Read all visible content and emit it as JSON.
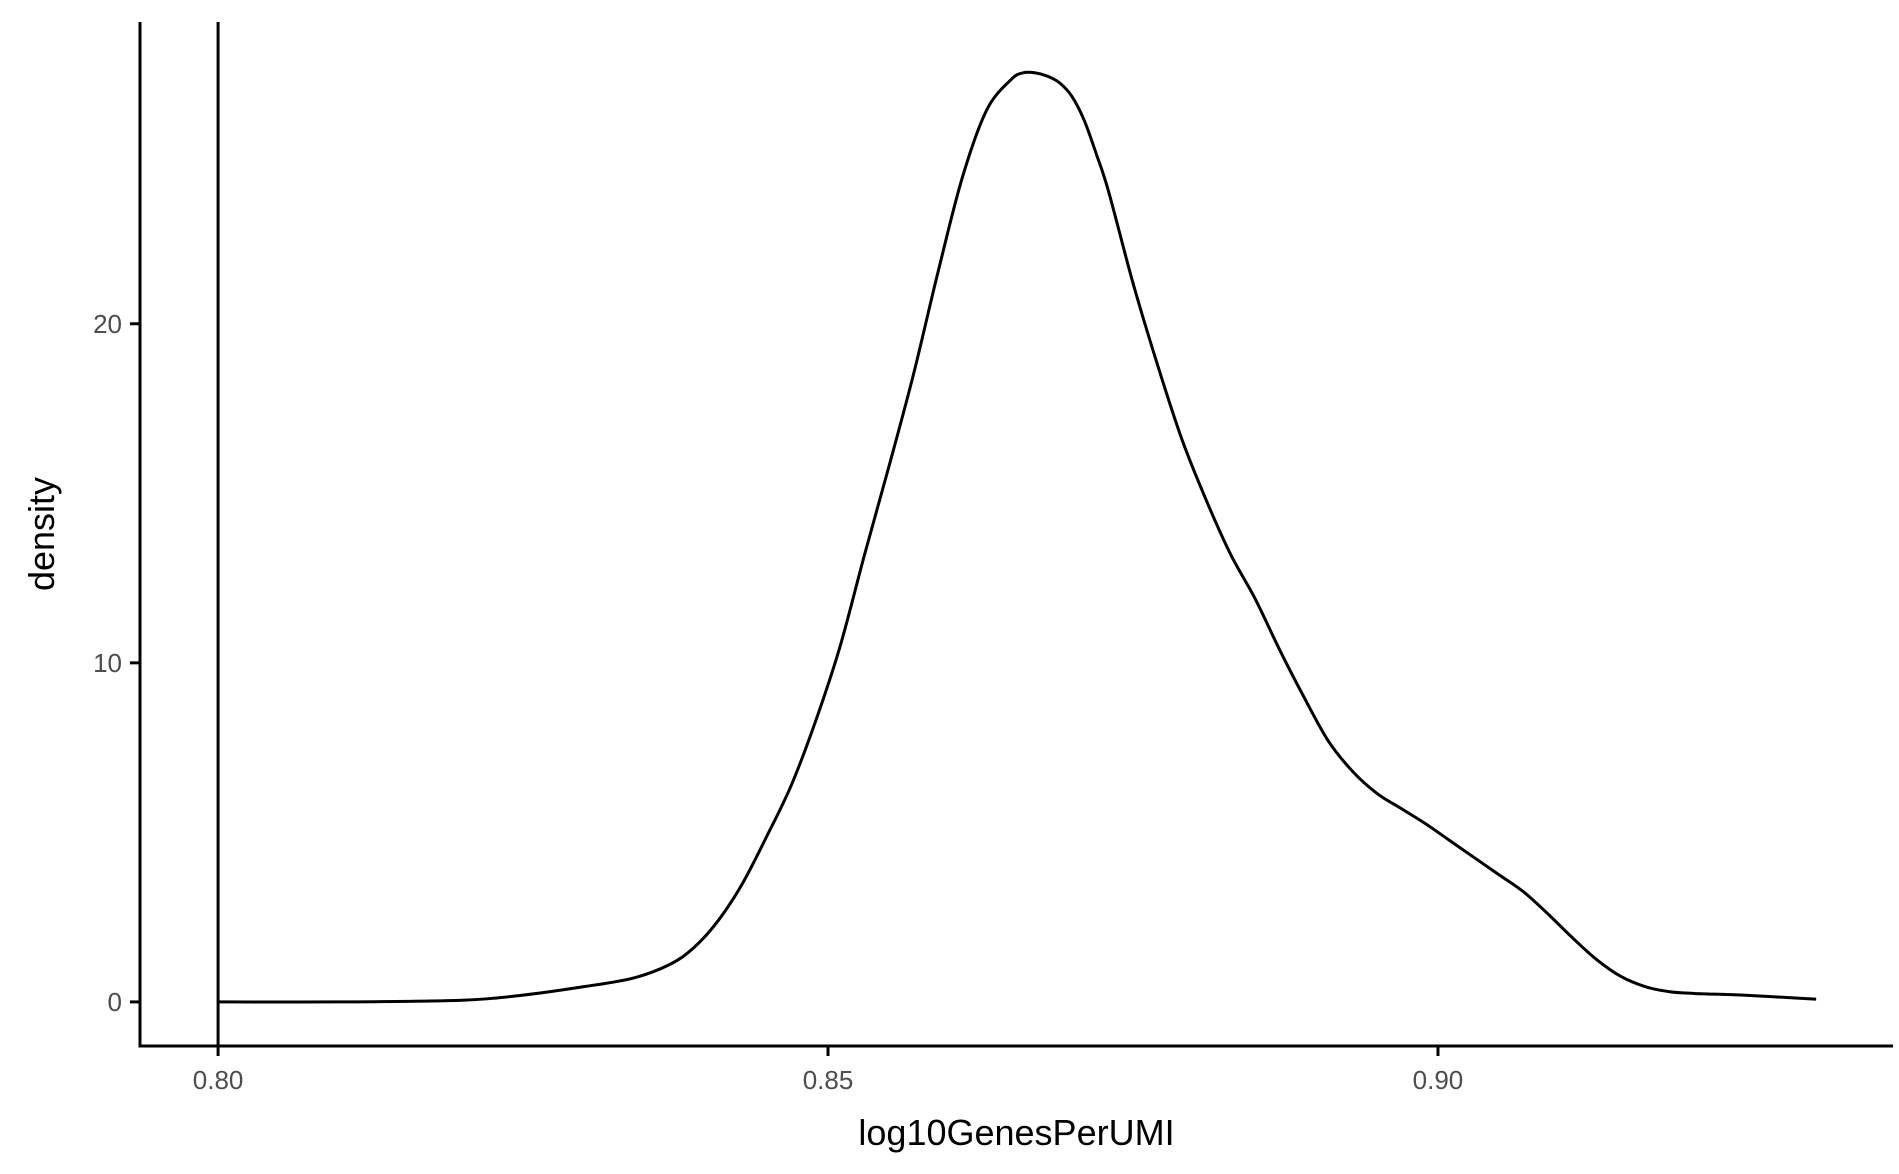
{
  "chart_data": {
    "type": "area",
    "title": "",
    "xlabel": "log10GenesPerUMI",
    "ylabel": "density",
    "xlim": [
      0.7936,
      0.9373
    ],
    "ylim": [
      -1.3,
      28.9
    ],
    "x_ticks": [
      0.8,
      0.85,
      0.9
    ],
    "x_tick_labels": [
      "0.80",
      "0.85",
      "0.90"
    ],
    "y_ticks": [
      0,
      10,
      20
    ],
    "y_tick_labels": [
      "0",
      "10",
      "20"
    ],
    "grid": false,
    "legend": "none",
    "vline": {
      "x": 0.8
    },
    "series": [
      {
        "x": [
          0.8,
          0.81,
          0.82,
          0.825,
          0.83,
          0.834,
          0.837,
          0.839,
          0.841,
          0.843,
          0.845,
          0.847,
          0.849,
          0.851,
          0.853,
          0.855,
          0.857,
          0.859,
          0.861,
          0.863,
          0.865,
          0.866,
          0.867,
          0.868,
          0.869,
          0.87,
          0.871,
          0.872,
          0.873,
          0.875,
          0.877,
          0.879,
          0.881,
          0.883,
          0.885,
          0.887,
          0.889,
          0.891,
          0.893,
          0.895,
          0.897,
          0.899,
          0.901,
          0.903,
          0.905,
          0.907,
          0.909,
          0.911,
          0.913,
          0.915,
          0.917,
          0.919,
          0.921,
          0.925,
          0.93,
          0.931
        ],
        "y": [
          0.0,
          0.0,
          0.05,
          0.2,
          0.45,
          0.7,
          1.1,
          1.6,
          2.4,
          3.5,
          4.9,
          6.4,
          8.3,
          10.5,
          13.2,
          15.8,
          18.5,
          21.5,
          24.3,
          26.3,
          27.2,
          27.4,
          27.4,
          27.3,
          27.1,
          26.7,
          26.0,
          25.0,
          23.9,
          21.2,
          18.8,
          16.6,
          14.8,
          13.2,
          11.9,
          10.4,
          9.0,
          7.7,
          6.8,
          6.15,
          5.7,
          5.25,
          4.75,
          4.25,
          3.75,
          3.25,
          2.6,
          1.9,
          1.25,
          0.75,
          0.45,
          0.3,
          0.25,
          0.2,
          0.1,
          0.08
        ]
      }
    ],
    "colors": {
      "line": "#000000",
      "axis": "#000000",
      "tick_label": "#4d4d4d",
      "axis_title": "#000000",
      "background": "#ffffff"
    }
  }
}
